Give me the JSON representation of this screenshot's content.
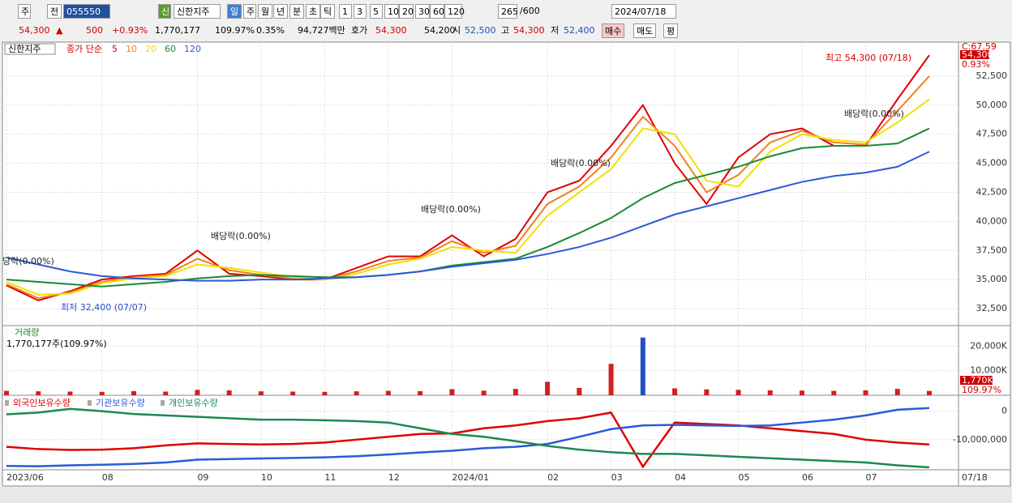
{
  "toolbar": [
    "주",
    "전",
    "055550",
    "신",
    "신한지주",
    "일",
    "주",
    "월",
    "년",
    "분",
    "초",
    "틱",
    "1",
    "3",
    "5",
    "10",
    "20",
    "30",
    "60",
    "120",
    "265",
    "/600",
    "2024/07/18"
  ],
  "quote": [
    "54,300",
    "▲",
    "500",
    "+0.93%",
    "1,770,177",
    "109.97%",
    "0.35%",
    "94,727백만",
    "호가",
    "54,300",
    "54,200",
    "시",
    "52,500",
    "고",
    "54,300",
    "저",
    "52,400",
    "매수",
    "매도",
    "평"
  ],
  "chart_data": [
    {
      "type": "line",
      "title": "신한지주",
      "legend_label": "종가 단순",
      "categories": [
        "2023/06",
        null,
        null,
        "08",
        null,
        null,
        "09",
        null,
        "10",
        null,
        "11",
        null,
        "12",
        null,
        "2024/01",
        null,
        null,
        "02",
        null,
        "03",
        null,
        "04",
        null,
        "05",
        null,
        "06",
        null,
        "07",
        null,
        null
      ],
      "x_end_label": "07/18",
      "series": [
        {
          "name": "5",
          "color": "#e00000",
          "values": [
            34500,
            33200,
            34000,
            35000,
            35300,
            35500,
            37500,
            35500,
            35300,
            35000,
            35000,
            36000,
            37000,
            37000,
            38800,
            37000,
            38500,
            42500,
            43500,
            46500,
            50000,
            45000,
            41500,
            45500,
            47500,
            48000,
            46500,
            46500,
            50500,
            54300
          ]
        },
        {
          "name": "10",
          "color": "#f08020",
          "values": [
            34600,
            33400,
            33900,
            34800,
            35200,
            35400,
            36800,
            35800,
            35400,
            35100,
            35000,
            35700,
            36600,
            36900,
            38300,
            37300,
            37900,
            41500,
            43000,
            45500,
            49000,
            46500,
            42500,
            44000,
            46800,
            47800,
            46800,
            46600,
            49500,
            52500
          ]
        },
        {
          "name": "20",
          "color": "#f0e000",
          "values": [
            34800,
            33700,
            33800,
            34700,
            35100,
            35300,
            36300,
            36000,
            35600,
            35200,
            35000,
            35500,
            36300,
            36800,
            37800,
            37500,
            37300,
            40500,
            42500,
            44500,
            48000,
            47500,
            43500,
            43000,
            46000,
            47500,
            47000,
            46800,
            48500,
            50500
          ]
        },
        {
          "name": "60",
          "color": "#1a8a30",
          "values": [
            35000,
            34800,
            34600,
            34400,
            34600,
            34800,
            35100,
            35300,
            35400,
            35300,
            35200,
            35200,
            35400,
            35700,
            36200,
            36500,
            36800,
            37800,
            39000,
            40300,
            42000,
            43300,
            44000,
            44700,
            45600,
            46300,
            46500,
            46500,
            46700,
            48000
          ]
        },
        {
          "name": "120",
          "color": "#2a5ad8",
          "values": [
            36900,
            36300,
            35700,
            35300,
            35100,
            35000,
            34900,
            34900,
            35000,
            35000,
            35100,
            35200,
            35400,
            35700,
            36100,
            36400,
            36700,
            37200,
            37800,
            38600,
            39600,
            40600,
            41300,
            42000,
            42700,
            43400,
            43900,
            44200,
            44700,
            46000
          ]
        }
      ],
      "ylim": [
        31040,
        55420
      ],
      "yticks": [
        {
          "value": 32500,
          "label": "32,500"
        },
        {
          "value": 35000,
          "label": "35,000"
        },
        {
          "value": 37500,
          "label": "37,500"
        },
        {
          "value": 40000,
          "label": "40,000"
        },
        {
          "value": 42500,
          "label": "42,500"
        },
        {
          "value": 45000,
          "label": "45,000"
        },
        {
          "value": 47500,
          "label": "47,500"
        },
        {
          "value": 50000,
          "label": "50,000"
        },
        {
          "value": 52500,
          "label": "52,500"
        }
      ],
      "grid": true,
      "annotations": [
        "당락(0.00%)",
        "배당락(0.00%)",
        "배당락(0.00%)",
        "배당락(0.00%)",
        "배당락(0.00%)",
        "최고 54,300 (07/18)",
        "최저 32,400 (07/07)"
      ],
      "axis_tags": [
        "C:67.59",
        "54,300",
        "0.93%"
      ]
    },
    {
      "type": "bar",
      "title": "거래량",
      "subtitle": "1,770,177주(109.97%)",
      "color": "#d02020",
      "values": [
        1800,
        1600,
        1500,
        1400,
        1700,
        1500,
        2200,
        2000,
        1600,
        1500,
        1400,
        1600,
        1800,
        1700,
        2500,
        1900,
        2600,
        5500,
        3000,
        12800,
        23500,
        2800,
        2400,
        2200,
        2000,
        1900,
        1800,
        2000,
        2600,
        1770
      ],
      "ylim": [
        0,
        27700
      ],
      "yticks": [
        {
          "value": 10000,
          "label": "10,000K"
        },
        {
          "value": 20000,
          "label": "20,000K"
        }
      ],
      "axis_tags": [
        "1,770K",
        "109.97%"
      ]
    },
    {
      "type": "line",
      "series": [
        {
          "name": "외국인보유수량",
          "color": "#e00000",
          "values": [
            -12500000,
            -13300000,
            -13600000,
            -13500000,
            -13000000,
            -12000000,
            -11300000,
            -11500000,
            -11700000,
            -11500000,
            -11000000,
            -10000000,
            -9000000,
            -8000000,
            -7800000,
            -6000000,
            -5000000,
            -3500000,
            -2500000,
            -500000,
            -19500000,
            -4000000,
            -4500000,
            -5000000,
            -6000000,
            -7000000,
            -8000000,
            -10000000,
            -11000000,
            -11700000
          ]
        },
        {
          "name": "기관보유수량",
          "color": "#2a5ad8",
          "values": [
            -19200000,
            -19300000,
            -19000000,
            -18800000,
            -18500000,
            -18000000,
            -17000000,
            -16800000,
            -16600000,
            -16400000,
            -16200000,
            -15800000,
            -15200000,
            -14500000,
            -13900000,
            -13000000,
            -12500000,
            -11500000,
            -9000000,
            -6300000,
            -5000000,
            -4800000,
            -5000000,
            -5200000,
            -5000000,
            -4000000,
            -3000000,
            -1500000,
            500000,
            1100000
          ]
        },
        {
          "name": "개인보유수량",
          "color": "#1a8a50",
          "values": [
            -1100000,
            -500000,
            800000,
            0,
            -1000000,
            -1500000,
            -2000000,
            -2500000,
            -3000000,
            -3000000,
            -3200000,
            -3500000,
            -4000000,
            -6000000,
            -8000000,
            -9000000,
            -10500000,
            -12200000,
            -13500000,
            -14400000,
            -15000000,
            -15000000,
            -15500000,
            -16000000,
            -16500000,
            -17000000,
            -17500000,
            -18000000,
            -19000000,
            -19700000
          ]
        }
      ],
      "ylim": [
        -20560000,
        5000000
      ],
      "yticks": [
        {
          "value": -10000000,
          "label": "-10,000,000"
        },
        0
      ]
    }
  ]
}
